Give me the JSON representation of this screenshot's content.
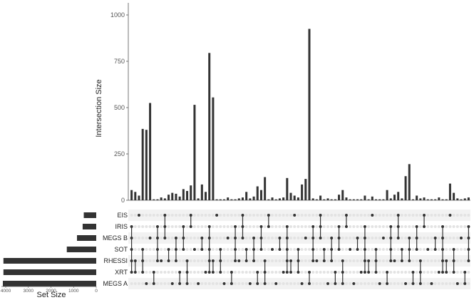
{
  "chart_data": {
    "type": "bar",
    "chart_kind": "upset",
    "ylabel": "Intersection Size",
    "set_size_label": "Set Size",
    "ylim": [
      0,
      1000
    ],
    "y_ticks": [
      0,
      250,
      500,
      750,
      1000
    ],
    "set_size_ticks": [
      4000,
      3000,
      2000,
      1000,
      0
    ],
    "grid": false,
    "sets": [
      "EIS",
      "IRIS",
      "MEGS B",
      "SOT",
      "RHESSI",
      "XRT",
      "MEGS A"
    ],
    "set_sizes": [
      550,
      600,
      850,
      1300,
      4100,
      4100,
      4300
    ],
    "bar_color": "#333333",
    "dot_active_color": "#333333",
    "dot_inactive_color": "#e3e3e3",
    "stripe_color": "#f2f2f2",
    "intersection_sizes": [
      55,
      45,
      25,
      385,
      380,
      525,
      5,
      5,
      15,
      10,
      30,
      40,
      35,
      20,
      60,
      50,
      80,
      515,
      10,
      85,
      45,
      795,
      555,
      5,
      5,
      5,
      15,
      5,
      5,
      10,
      15,
      45,
      10,
      20,
      75,
      55,
      125,
      5,
      15,
      5,
      10,
      15,
      120,
      40,
      25,
      15,
      85,
      115,
      925,
      10,
      5,
      25,
      5,
      10,
      5,
      5,
      30,
      55,
      15,
      5,
      5,
      5,
      5,
      25,
      5,
      20,
      5,
      5,
      5,
      55,
      10,
      30,
      45,
      10,
      130,
      195,
      5,
      25,
      10,
      15,
      5,
      5,
      5,
      15,
      5,
      5,
      90,
      40,
      10,
      5,
      10,
      15
    ]
  }
}
